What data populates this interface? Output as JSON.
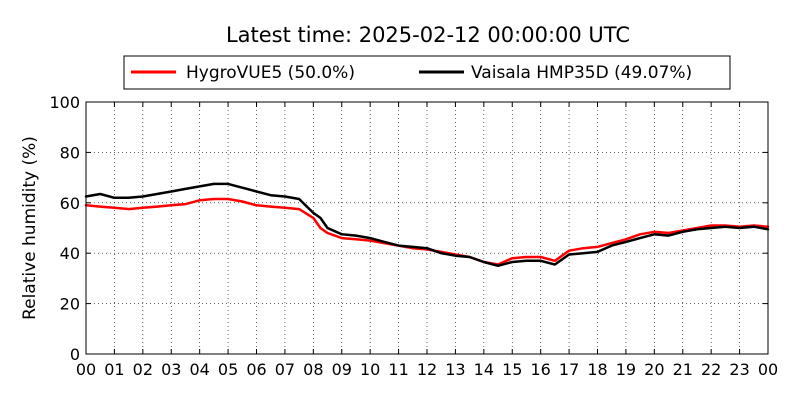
{
  "chart_data": {
    "type": "line",
    "title": "Latest time: 2025-02-12 00:00:00 UTC",
    "ylabel": "Relative humidity (%)",
    "xlabel": "",
    "xlim": [
      0,
      24
    ],
    "ylim": [
      0,
      100
    ],
    "x_ticks": [
      "00",
      "01",
      "02",
      "03",
      "04",
      "05",
      "06",
      "07",
      "08",
      "09",
      "10",
      "11",
      "12",
      "13",
      "14",
      "15",
      "16",
      "17",
      "18",
      "19",
      "20",
      "21",
      "22",
      "23",
      "00"
    ],
    "y_ticks": [
      "0",
      "20",
      "40",
      "60",
      "80",
      "100"
    ],
    "grid": true,
    "legend_position": "top",
    "series": [
      {
        "name": "HygroVUE5 (50.0%)",
        "color": "#ff0000",
        "x": [
          0,
          0.5,
          1,
          1.5,
          2,
          2.5,
          3,
          3.5,
          4,
          4.5,
          5,
          5.5,
          6,
          6.5,
          7,
          7.5,
          8,
          8.25,
          8.5,
          9,
          9.5,
          10,
          10.5,
          11,
          11.5,
          12,
          12.5,
          13,
          13.5,
          14,
          14.5,
          15,
          15.5,
          16,
          16.5,
          17,
          17.5,
          18,
          18.5,
          19,
          19.5,
          20,
          20.5,
          21,
          21.5,
          22,
          22.5,
          23,
          23.5,
          24
        ],
        "values": [
          59,
          58.5,
          58,
          57.5,
          58,
          58.5,
          59,
          59.5,
          61,
          61.5,
          61.5,
          60.5,
          59,
          58.5,
          58,
          57.5,
          54,
          50,
          48,
          46,
          45.5,
          45,
          44,
          43,
          42,
          41.5,
          40.5,
          39.5,
          38.5,
          36.5,
          35.5,
          38,
          38.5,
          38.5,
          37,
          41,
          42,
          42.5,
          44,
          45.5,
          47.5,
          48.5,
          48,
          49,
          50,
          51,
          51,
          50.5,
          51,
          50.5
        ]
      },
      {
        "name": "Vaisala HMP35D (49.07%)",
        "color": "#000000",
        "x": [
          0,
          0.5,
          1,
          1.5,
          2,
          2.5,
          3,
          3.5,
          4,
          4.5,
          5,
          5.5,
          6,
          6.5,
          7,
          7.5,
          8,
          8.25,
          8.5,
          9,
          9.5,
          10,
          10.5,
          11,
          11.5,
          12,
          12.5,
          13,
          13.5,
          14,
          14.5,
          15,
          15.5,
          16,
          16.5,
          17,
          17.5,
          18,
          18.5,
          19,
          19.5,
          20,
          20.5,
          21,
          21.5,
          22,
          22.5,
          23,
          23.5,
          24
        ],
        "values": [
          62.5,
          63.5,
          62,
          62,
          62.5,
          63.5,
          64.5,
          65.5,
          66.5,
          67.5,
          67.5,
          66,
          64.5,
          63,
          62.5,
          61.5,
          56,
          54,
          50,
          47.5,
          47,
          46,
          44.5,
          43,
          42.5,
          42,
          40,
          39,
          38.5,
          36.5,
          35,
          36.5,
          37,
          37,
          35.5,
          39.5,
          40,
          40.5,
          43,
          44.5,
          46,
          47.5,
          47,
          48.5,
          49.5,
          50,
          50.5,
          50,
          50.5,
          49.5
        ]
      }
    ]
  }
}
